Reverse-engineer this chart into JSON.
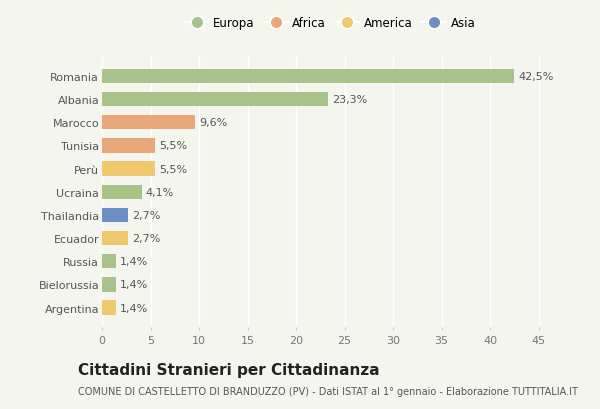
{
  "countries": [
    "Romania",
    "Albania",
    "Marocco",
    "Tunisia",
    "Perù",
    "Ucraina",
    "Thailandia",
    "Ecuador",
    "Russia",
    "Bielorussia",
    "Argentina"
  ],
  "values": [
    42.5,
    23.3,
    9.6,
    5.5,
    5.5,
    4.1,
    2.7,
    2.7,
    1.4,
    1.4,
    1.4
  ],
  "labels": [
    "42,5%",
    "23,3%",
    "9,6%",
    "5,5%",
    "5,5%",
    "4,1%",
    "2,7%",
    "2,7%",
    "1,4%",
    "1,4%",
    "1,4%"
  ],
  "colors": [
    "#a8c38a",
    "#a8c38a",
    "#e8a87c",
    "#e8a87c",
    "#f0c96e",
    "#a8c38a",
    "#6b8fc2",
    "#f0c96e",
    "#a8c38a",
    "#a8c38a",
    "#f0c96e"
  ],
  "legend_labels": [
    "Europa",
    "Africa",
    "America",
    "Asia"
  ],
  "legend_colors": [
    "#a8c38a",
    "#e8a87c",
    "#f0c96e",
    "#6b8fc2"
  ],
  "title": "Cittadini Stranieri per Cittadinanza",
  "subtitle": "COMUNE DI CASTELLETTO DI BRANDUZZO (PV) - Dati ISTAT al 1° gennaio - Elaborazione TUTTITALIA.IT",
  "xlim": [
    0,
    47
  ],
  "xticks": [
    0,
    5,
    10,
    15,
    20,
    25,
    30,
    35,
    40,
    45
  ],
  "background_color": "#f5f5f0",
  "bar_height": 0.62,
  "title_fontsize": 11,
  "subtitle_fontsize": 7,
  "tick_fontsize": 8,
  "label_fontsize": 8,
  "legend_fontsize": 8.5
}
